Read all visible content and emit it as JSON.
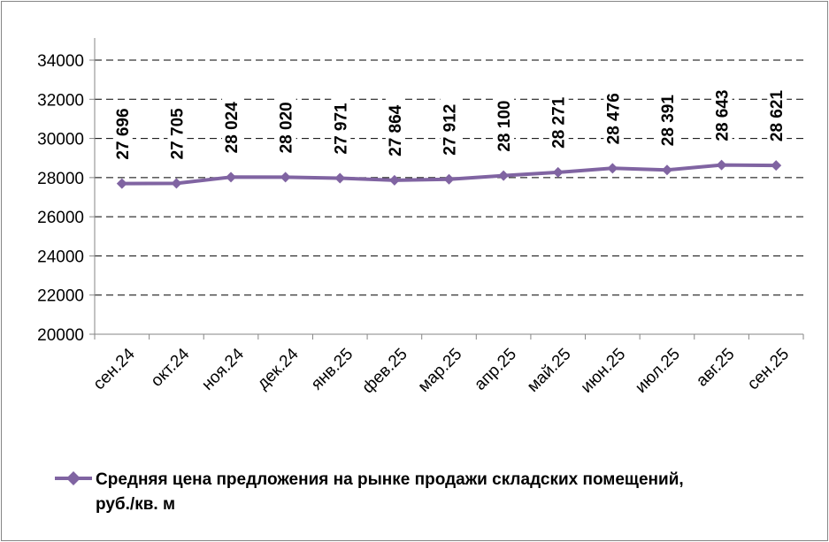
{
  "chart_data": {
    "type": "line",
    "categories": [
      "сен.24",
      "окт.24",
      "ноя.24",
      "дек.24",
      "янв.25",
      "фев.25",
      "мар.25",
      "апр.25",
      "май.25",
      "июн.25",
      "июл.25",
      "авг.25",
      "сен.25"
    ],
    "series": [
      {
        "name": "Средняя цена предложения на рынке продажи складских помещений, руб./кв. м",
        "values": [
          27696,
          27705,
          28024,
          28020,
          27971,
          27864,
          27912,
          28100,
          28271,
          28476,
          28391,
          28643,
          28621
        ],
        "value_labels": [
          "27 696",
          "27 705",
          "28 024",
          "28 020",
          "27 971",
          "27 864",
          "27 912",
          "28 100",
          "28 271",
          "28 476",
          "28 391",
          "28 643",
          "28 621"
        ],
        "color": "#8064a2"
      }
    ],
    "ylim": [
      20000,
      34000
    ],
    "yticks": [
      "20000",
      "22000",
      "24000",
      "26000",
      "28000",
      "30000",
      "32000",
      "34000"
    ],
    "grid": "dashed horizontal",
    "legend": "bottom",
    "legend_lines": [
      "Средняя цена предложения на рынке продажи складских помещений,",
      "руб./кв. м"
    ]
  }
}
